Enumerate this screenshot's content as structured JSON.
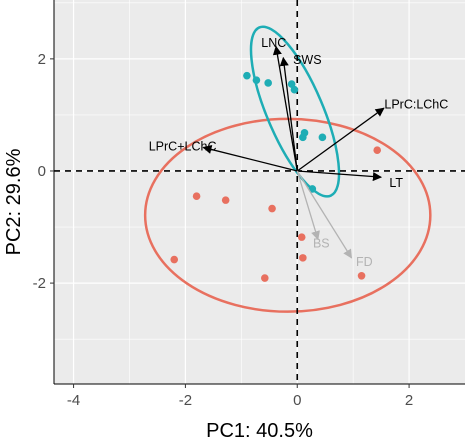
{
  "chart_data": {
    "type": "scatter",
    "xlabel": "PC1: 40.5%",
    "ylabel": "PC2: 29.6%",
    "xlim": [
      -4.35,
      3.0
    ],
    "ylim": [
      -3.8,
      3.05
    ],
    "x_ticks": [
      -4,
      -2,
      0,
      2
    ],
    "y_ticks": [
      -2,
      0,
      2
    ],
    "x_tick_labels": [
      "-4",
      "-2",
      "0",
      "2"
    ],
    "y_tick_labels": [
      "-2",
      "0",
      "2"
    ],
    "grid": true,
    "colors": {
      "group_red": "#e8705f",
      "group_teal": "#1eadb5",
      "arrow_active": "#000000",
      "arrow_supplementary": "#b3b3b3",
      "panel_background": "#ebebeb",
      "grid_line": "#ffffff"
    },
    "series": [
      {
        "color": "#e8705f",
        "points": [
          {
            "x": -1.8,
            "y": -0.45
          },
          {
            "x": -1.28,
            "y": -0.52
          },
          {
            "x": -0.45,
            "y": -0.67
          },
          {
            "x": -2.2,
            "y": -1.58
          },
          {
            "x": -0.58,
            "y": -1.91
          },
          {
            "x": 0.08,
            "y": -1.18
          },
          {
            "x": 0.1,
            "y": -1.55
          },
          {
            "x": 1.15,
            "y": -1.87
          },
          {
            "x": 1.43,
            "y": 0.37
          }
        ],
        "ellipse": {
          "cx": -0.17,
          "cy": -0.79,
          "rx": 2.55,
          "ry": 1.72,
          "angle_deg": 0
        }
      },
      {
        "color": "#1eadb5",
        "points": [
          {
            "x": -0.9,
            "y": 1.7
          },
          {
            "x": -0.73,
            "y": 1.62
          },
          {
            "x": -0.52,
            "y": 1.57
          },
          {
            "x": -0.05,
            "y": 1.45
          },
          {
            "x": -0.1,
            "y": 1.55
          },
          {
            "x": 0.1,
            "y": 0.6
          },
          {
            "x": 0.13,
            "y": 0.68
          },
          {
            "x": 0.45,
            "y": 0.6
          },
          {
            "x": 0.27,
            "y": -0.32
          }
        ],
        "ellipse": {
          "cx": -0.04,
          "cy": 1.06,
          "rx": 0.5,
          "ry": 1.63,
          "angle_deg": -23
        }
      }
    ],
    "loadings": [
      {
        "label": "LNC",
        "x": -0.38,
        "y": 2.22,
        "color": "#000000",
        "label_x": -0.42,
        "label_y": 2.28
      },
      {
        "label": "SWS",
        "x": -0.25,
        "y": 2.02,
        "color": "#000000",
        "label_x": 0.18,
        "label_y": 1.98
      },
      {
        "label": "LPrC:LChC",
        "x": 1.55,
        "y": 1.12,
        "color": "#000000",
        "label_x": 2.13,
        "label_y": 1.19
      },
      {
        "label": "LPrC+LChC",
        "x": -1.68,
        "y": 0.42,
        "color": "#000000",
        "label_x": -2.05,
        "label_y": 0.44
      },
      {
        "label": "LT",
        "x": 1.5,
        "y": -0.11,
        "color": "#000000",
        "label_x": 1.77,
        "label_y": -0.21
      },
      {
        "label": "BS",
        "x": 0.37,
        "y": -1.22,
        "color": "#b3b3b3",
        "label_x": 0.43,
        "label_y": -1.29
      },
      {
        "label": "FD",
        "x": 0.97,
        "y": -1.55,
        "color": "#b3b3b3",
        "label_x": 1.2,
        "label_y": -1.62
      }
    ]
  }
}
